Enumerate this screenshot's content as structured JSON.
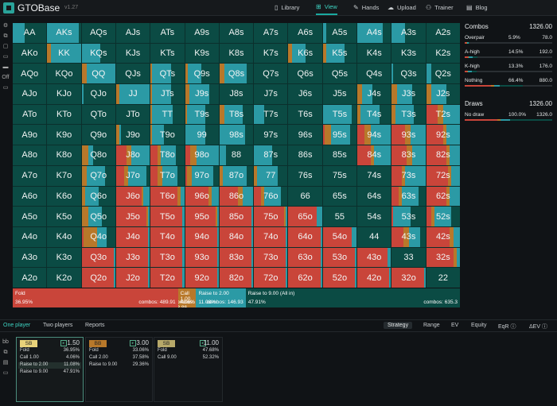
{
  "app": {
    "brand": "GTOBase",
    "version": "v1.27"
  },
  "nav": [
    {
      "icon": "book-icon",
      "glyph": "▯",
      "label": "Library"
    },
    {
      "icon": "grid-icon",
      "glyph": "⊞",
      "label": "View"
    },
    {
      "icon": "hands-icon",
      "glyph": "✎",
      "label": "Hands"
    },
    {
      "icon": "cloud-upload-icon",
      "glyph": "☁",
      "label": "Upload"
    },
    {
      "icon": "trainer-icon",
      "glyph": "⚇",
      "label": "Trainer"
    },
    {
      "icon": "blog-icon",
      "glyph": "▤",
      "label": "Blog"
    }
  ],
  "left_tools": [
    "⚙",
    "⧉",
    "▢",
    "▭",
    "▬",
    "Off",
    "▭"
  ],
  "colors": {
    "fold": "#c9453a",
    "call": "#b8782a",
    "raise": "#2b9aa5",
    "allin": "#0b4b44"
  },
  "grid": {
    "rows": [
      [
        "AA",
        "AKs",
        "AQs",
        "AJs",
        "ATs",
        "A9s",
        "A8s",
        "A7s",
        "A6s",
        "A5s",
        "A4s",
        "A3s",
        "A2s"
      ],
      [
        "AKo",
        "KK",
        "KQs",
        "KJs",
        "KTs",
        "K9s",
        "K8s",
        "K7s",
        "K6s",
        "K5s",
        "K4s",
        "K3s",
        "K2s"
      ],
      [
        "AQo",
        "KQo",
        "QQ",
        "QJs",
        "QTs",
        "Q9s",
        "Q8s",
        "Q7s",
        "Q6s",
        "Q5s",
        "Q4s",
        "Q3s",
        "Q2s"
      ],
      [
        "AJo",
        "KJo",
        "QJo",
        "JJ",
        "JTs",
        "J9s",
        "J8s",
        "J7s",
        "J6s",
        "J5s",
        "J4s",
        "J3s",
        "J2s"
      ],
      [
        "ATo",
        "KTo",
        "QTo",
        "JTo",
        "TT",
        "T9s",
        "T8s",
        "T7s",
        "T6s",
        "T5s",
        "T4s",
        "T3s",
        "T2s"
      ],
      [
        "A9o",
        "K9o",
        "Q9o",
        "J9o",
        "T9o",
        "99",
        "98s",
        "97s",
        "96s",
        "95s",
        "94s",
        "93s",
        "92s"
      ],
      [
        "A8o",
        "K8o",
        "Q8o",
        "J8o",
        "T8o",
        "98o",
        "88",
        "87s",
        "86s",
        "85s",
        "84s",
        "83s",
        "82s"
      ],
      [
        "A7o",
        "K7o",
        "Q7o",
        "J7o",
        "T7o",
        "97o",
        "87o",
        "77",
        "76s",
        "75s",
        "74s",
        "73s",
        "72s"
      ],
      [
        "A6o",
        "K6o",
        "Q6o",
        "J6o",
        "T6o",
        "96o",
        "86o",
        "76o",
        "66",
        "65s",
        "64s",
        "63s",
        "62s"
      ],
      [
        "A5o",
        "K5o",
        "Q5o",
        "J5o",
        "T5o",
        "95o",
        "85o",
        "75o",
        "65o",
        "55",
        "54s",
        "53s",
        "52s"
      ],
      [
        "A4o",
        "K4o",
        "Q4o",
        "J4o",
        "T4o",
        "94o",
        "84o",
        "74o",
        "64o",
        "54o",
        "44",
        "43s",
        "42s"
      ],
      [
        "A3o",
        "K3o",
        "Q3o",
        "J3o",
        "T3o",
        "93o",
        "83o",
        "73o",
        "63o",
        "53o",
        "43o",
        "33",
        "32s"
      ],
      [
        "A2o",
        "K2o",
        "Q2o",
        "J2o",
        "T2o",
        "92o",
        "82o",
        "72o",
        "62o",
        "52o",
        "42o",
        "32o",
        "22"
      ]
    ],
    "strategy": [
      [
        [
          0,
          0,
          0.35,
          0.65
        ],
        [
          0,
          0,
          0.95,
          0.05
        ],
        [
          0,
          0,
          0,
          1
        ],
        [
          0,
          0,
          0,
          1
        ],
        [
          0,
          0,
          0,
          1
        ],
        [
          0,
          0,
          0,
          1
        ],
        [
          0,
          0,
          0,
          1
        ],
        [
          0,
          0,
          0,
          1
        ],
        [
          0,
          0,
          0,
          1
        ],
        [
          0,
          0,
          0.1,
          0.9
        ],
        [
          0,
          0,
          0.75,
          0.25
        ],
        [
          0,
          0,
          0.4,
          0.6
        ],
        [
          0,
          0,
          0,
          1
        ]
      ],
      [
        [
          0,
          0,
          0,
          1
        ],
        [
          0,
          0.1,
          0.9,
          0
        ],
        [
          0,
          0,
          0.55,
          0.45
        ],
        [
          0,
          0,
          0,
          1
        ],
        [
          0,
          0,
          0,
          1
        ],
        [
          0,
          0,
          0,
          1
        ],
        [
          0,
          0,
          0,
          1
        ],
        [
          0,
          0,
          0,
          1
        ],
        [
          0,
          0.1,
          0.4,
          0.5
        ],
        [
          0,
          0.1,
          0.55,
          0.35
        ],
        [
          0,
          0,
          0,
          1
        ],
        [
          0,
          0,
          0,
          1
        ],
        [
          0,
          0,
          0,
          1
        ]
      ],
      [
        [
          0,
          0,
          0,
          1
        ],
        [
          0,
          0,
          0,
          1
        ],
        [
          0,
          0.15,
          0.85,
          0
        ],
        [
          0,
          0,
          0,
          1
        ],
        [
          0,
          0.05,
          0.55,
          0.4
        ],
        [
          0,
          0.08,
          0.4,
          0.52
        ],
        [
          0,
          0.15,
          0.65,
          0.2
        ],
        [
          0,
          0,
          0,
          1
        ],
        [
          0,
          0,
          0,
          1
        ],
        [
          0,
          0,
          0,
          1
        ],
        [
          0,
          0,
          0,
          1
        ],
        [
          0,
          0,
          0.05,
          0.95
        ],
        [
          0,
          0,
          0.15,
          0.85
        ]
      ],
      [
        [
          0,
          0,
          0,
          1
        ],
        [
          0,
          0,
          0,
          1
        ],
        [
          0,
          0,
          0.05,
          0.95
        ],
        [
          0,
          0.1,
          0.9,
          0
        ],
        [
          0,
          0.05,
          0.55,
          0.4
        ],
        [
          0,
          0.12,
          0.6,
          0.28
        ],
        [
          0,
          0,
          0,
          1
        ],
        [
          0,
          0,
          0,
          1
        ],
        [
          0,
          0,
          0,
          1
        ],
        [
          0,
          0,
          0,
          1
        ],
        [
          0,
          0.15,
          0.3,
          0.55
        ],
        [
          0,
          0.15,
          0.45,
          0.4
        ],
        [
          0,
          0.15,
          0.45,
          0.4
        ]
      ],
      [
        [
          0,
          0,
          0,
          1
        ],
        [
          0,
          0,
          0,
          1
        ],
        [
          0,
          0,
          0,
          1
        ],
        [
          0,
          0,
          0,
          1
        ],
        [
          0,
          0.05,
          0.6,
          0.35
        ],
        [
          0,
          0.05,
          0.55,
          0.4
        ],
        [
          0,
          0.15,
          0.55,
          0.3
        ],
        [
          0,
          0,
          0.3,
          0.7
        ],
        [
          0,
          0,
          0,
          1
        ],
        [
          0,
          0,
          0.85,
          0.15
        ],
        [
          0,
          0.1,
          0.55,
          0.35
        ],
        [
          0,
          0.1,
          0.55,
          0.35
        ],
        [
          0.35,
          0.15,
          0.5,
          0
        ]
      ],
      [
        [
          0,
          0,
          0,
          1
        ],
        [
          0,
          0,
          0,
          1
        ],
        [
          0,
          0,
          0,
          1
        ],
        [
          0,
          0.1,
          0.05,
          0.85
        ],
        [
          0,
          0.05,
          0.35,
          0.6
        ],
        [
          0,
          0,
          0.6,
          0.4
        ],
        [
          0,
          0,
          0.75,
          0.25
        ],
        [
          0,
          0,
          0,
          1
        ],
        [
          0,
          0,
          0,
          1
        ],
        [
          0.05,
          0.2,
          0.55,
          0.2
        ],
        [
          0.2,
          0.2,
          0.6,
          0
        ],
        [
          0.4,
          0.15,
          0.45,
          0
        ],
        [
          0.5,
          0.1,
          0.4,
          0
        ]
      ],
      [
        [
          0,
          0,
          0,
          1
        ],
        [
          0,
          0,
          0,
          1
        ],
        [
          0,
          0.2,
          0.15,
          0.65
        ],
        [
          0.3,
          0.15,
          0.55,
          0
        ],
        [
          0.2,
          0.1,
          0.45,
          0.25
        ],
        [
          0.15,
          0.2,
          0.65,
          0
        ],
        [
          0,
          0,
          0.2,
          0.8
        ],
        [
          0,
          0,
          0.55,
          0.45
        ],
        [
          0,
          0,
          0,
          1
        ],
        [
          0,
          0,
          0,
          1
        ],
        [
          0.4,
          0.1,
          0.5,
          0
        ],
        [
          0.45,
          0.15,
          0.4,
          0
        ],
        [
          0.6,
          0.1,
          0.3,
          0
        ]
      ],
      [
        [
          0,
          0,
          0,
          1
        ],
        [
          0,
          0,
          0,
          1
        ],
        [
          0,
          0.15,
          0.55,
          0.3
        ],
        [
          0.25,
          0.1,
          0.55,
          0.1
        ],
        [
          0.2,
          0.15,
          0.45,
          0.2
        ],
        [
          0.05,
          0.15,
          0.65,
          0.15
        ],
        [
          0,
          0.1,
          0.7,
          0.2
        ],
        [
          0,
          0.1,
          0.6,
          0.3
        ],
        [
          0,
          0,
          0,
          1
        ],
        [
          0,
          0,
          0,
          1
        ],
        [
          0,
          0,
          0,
          1
        ],
        [
          0.3,
          0.1,
          0.6,
          0
        ],
        [
          0.65,
          0.1,
          0.25,
          0
        ]
      ],
      [
        [
          0,
          0,
          0,
          1
        ],
        [
          0,
          0,
          0,
          1
        ],
        [
          0,
          0.1,
          0.4,
          0.5
        ],
        [
          0.75,
          0.05,
          0.2,
          0
        ],
        [
          0.8,
          0.1,
          0.1,
          0
        ],
        [
          0.7,
          0.1,
          0.2,
          0
        ],
        [
          0.55,
          0.15,
          0.3,
          0
        ],
        [
          0.2,
          0.1,
          0.5,
          0.2
        ],
        [
          0,
          0,
          0,
          1
        ],
        [
          0,
          0,
          0,
          1
        ],
        [
          0,
          0,
          0,
          1
        ],
        [
          0.2,
          0.1,
          0.5,
          0.2
        ],
        [
          0.6,
          0.1,
          0.3,
          0
        ]
      ],
      [
        [
          0,
          0,
          0,
          1
        ],
        [
          0,
          0,
          0,
          1
        ],
        [
          0,
          0.2,
          0.4,
          0.4
        ],
        [
          0.9,
          0.05,
          0.05,
          0
        ],
        [
          0.95,
          0,
          0.05,
          0
        ],
        [
          0.9,
          0.05,
          0.05,
          0
        ],
        [
          0.95,
          0,
          0.05,
          0
        ],
        [
          0.9,
          0.05,
          0.05,
          0
        ],
        [
          0.85,
          0,
          0.15,
          0
        ],
        [
          0,
          0,
          0,
          1
        ],
        [
          0,
          0,
          0,
          1
        ],
        [
          0.05,
          0,
          0.5,
          0.45
        ],
        [
          0.15,
          0.1,
          0.5,
          0.25
        ]
      ],
      [
        [
          0,
          0,
          0,
          1
        ],
        [
          0,
          0,
          0,
          1
        ],
        [
          0.05,
          0.4,
          0.3,
          0.25
        ],
        [
          0.95,
          0,
          0.05,
          0
        ],
        [
          0.95,
          0,
          0.05,
          0
        ],
        [
          0.95,
          0,
          0.05,
          0
        ],
        [
          0.95,
          0,
          0.05,
          0
        ],
        [
          0.95,
          0,
          0.05,
          0
        ],
        [
          0.95,
          0,
          0.05,
          0
        ],
        [
          0.85,
          0,
          0.15,
          0
        ],
        [
          0,
          0,
          0,
          1
        ],
        [
          0.35,
          0.15,
          0.35,
          0.15
        ],
        [
          0.7,
          0.1,
          0.2,
          0
        ]
      ],
      [
        [
          0,
          0,
          0,
          1
        ],
        [
          0,
          0,
          0,
          1
        ],
        [
          0.95,
          0,
          0.05,
          0
        ],
        [
          0.95,
          0,
          0.05,
          0
        ],
        [
          0.95,
          0,
          0.05,
          0
        ],
        [
          0.95,
          0,
          0.05,
          0
        ],
        [
          0.95,
          0,
          0.05,
          0
        ],
        [
          0.95,
          0,
          0.05,
          0
        ],
        [
          0.95,
          0,
          0.05,
          0
        ],
        [
          0.95,
          0,
          0.05,
          0
        ],
        [
          0.9,
          0,
          0.1,
          0
        ],
        [
          0,
          0,
          0,
          1
        ],
        [
          0.8,
          0.1,
          0.1,
          0
        ]
      ],
      [
        [
          0,
          0,
          0,
          1
        ],
        [
          0,
          0,
          0,
          1
        ],
        [
          0.95,
          0,
          0.05,
          0
        ],
        [
          0.95,
          0,
          0.05,
          0
        ],
        [
          0.95,
          0,
          0.05,
          0
        ],
        [
          0.95,
          0,
          0.05,
          0
        ],
        [
          0.95,
          0,
          0.05,
          0
        ],
        [
          0.95,
          0,
          0.05,
          0
        ],
        [
          0.95,
          0,
          0.05,
          0
        ],
        [
          0.95,
          0,
          0.05,
          0
        ],
        [
          0.95,
          0,
          0.05,
          0
        ],
        [
          0.95,
          0,
          0.05,
          0
        ],
        [
          0,
          0,
          0,
          1
        ]
      ]
    ]
  },
  "actions": [
    {
      "label": "Fold",
      "pct": "36.95%",
      "combos": "combos: 489.91",
      "share": 36.95,
      "color": "#c9453a"
    },
    {
      "label": "Call 1.00",
      "pct": "4.06%",
      "combos": "combos: 53.86",
      "share": 4.06,
      "color": "#b8782a"
    },
    {
      "label": "Raise to 2.00",
      "pct": "11.08%",
      "combos": "combos: 146.93",
      "share": 11.08,
      "color": "#2b9aa5"
    },
    {
      "label": "Raise to 9.00 (All in)",
      "pct": "47.91%",
      "combos": "combos: 635.3",
      "share": 47.91,
      "color": "#0b4b44"
    }
  ],
  "combos": {
    "title": "Combos",
    "total": "1326.00",
    "rows": [
      {
        "name": "Overpair",
        "pct": "5.9%",
        "count": "78.0",
        "fill": [
          30,
          10,
          30,
          30
        ]
      },
      {
        "name": "A-high",
        "pct": "14.5%",
        "count": "192.0",
        "fill": [
          25,
          5,
          30,
          40
        ]
      },
      {
        "name": "K-high",
        "pct": "13.3%",
        "count": "176.0",
        "fill": [
          20,
          5,
          35,
          40
        ]
      },
      {
        "name": "Nothing",
        "pct": "66.4%",
        "count": "880.0",
        "fill": [
          45,
          5,
          10,
          40
        ]
      }
    ]
  },
  "draws": {
    "title": "Draws",
    "total": "1326.00",
    "rows": [
      {
        "name": "No draw",
        "pct": "100.0%",
        "count": "1326.0",
        "fill": [
          37,
          4,
          11,
          48
        ]
      }
    ]
  },
  "bottom_tabs": [
    "One player",
    "Two players",
    "Reports"
  ],
  "right_tabs": [
    "Strategy",
    "Range",
    "EV",
    "Equity",
    "EqR ⓘ",
    "ΔEV ⓘ"
  ],
  "bottom_left_icons": [
    "bb",
    "⧉",
    "▤",
    "▭"
  ],
  "panels": [
    {
      "tag": "SB",
      "tagcolor": "#e8d27a",
      "value": "1.50",
      "rows": [
        [
          "Fold",
          "36.95%"
        ],
        [
          "Call 1.00",
          "4.06%"
        ],
        [
          "Raise to 2.00",
          "11.08%"
        ],
        [
          "Raise to 9.00",
          "47.91%"
        ]
      ]
    },
    {
      "tag": "BB",
      "tagcolor": "#b8782a",
      "value": "3.00",
      "rows": [
        [
          "Fold",
          "33.06%"
        ],
        [
          "Call 2.00",
          "37.58%"
        ],
        [
          "Raise to 9.00",
          "29.36%"
        ]
      ]
    },
    {
      "tag": "SB",
      "tagcolor": "#b7a869",
      "value": "11.00",
      "rows": [
        [
          "Fold",
          "47.68%"
        ],
        [
          "Call 9.00",
          "52.32%"
        ]
      ]
    }
  ]
}
